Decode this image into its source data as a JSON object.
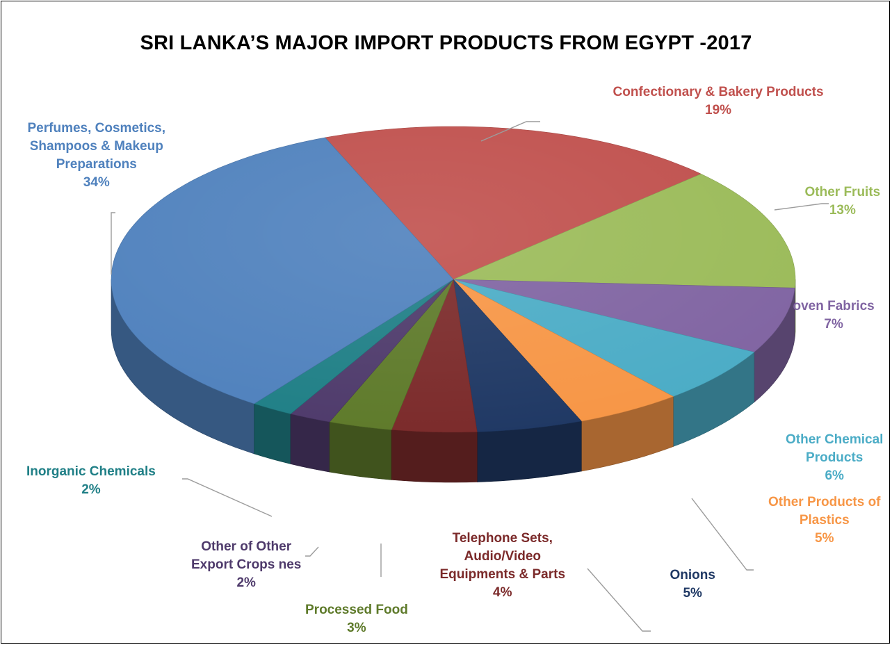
{
  "chart_data": {
    "type": "pie",
    "title": "SRI LANKA’S MAJOR IMPORT PRODUCTS FROM EGYPT -2017",
    "slices": [
      {
        "name": "Confectionary & Bakery Products",
        "value": 19,
        "label": "19%",
        "color": "#C0504D"
      },
      {
        "name": "Other Fruits",
        "value": 13,
        "label": "13%",
        "color": "#9BBB59"
      },
      {
        "name": "oven Fabrics",
        "value": 7,
        "label": "7%",
        "color": "#8064A2"
      },
      {
        "name": "Other Chemical Products",
        "value": 6,
        "label": "6%",
        "color": "#4BACC6"
      },
      {
        "name": "Other Products of Plastics",
        "value": 5,
        "label": "5%",
        "color": "#F79646"
      },
      {
        "name": "Onions",
        "value": 5,
        "label": "5%",
        "color": "#1F3864"
      },
      {
        "name": "Telephone Sets, Audio/Video Equipments & Parts",
        "value": 4,
        "label": "4%",
        "color": "#7B2A2A"
      },
      {
        "name": "Processed Food",
        "value": 3,
        "label": "3%",
        "color": "#5E7A2A"
      },
      {
        "name": "Other of Other Export Crops nes",
        "value": 2,
        "label": "2%",
        "color": "#4E3A6B"
      },
      {
        "name": "Inorganic Chemicals",
        "value": 2,
        "label": "2%",
        "color": "#1F7F86"
      },
      {
        "name": "Perfumes, Cosmetics, Shampoos & Makeup Preparations",
        "value": 34,
        "label": "34%",
        "color": "#4F81BD"
      }
    ],
    "labels": [
      {
        "lines": [
          "Confectionary & Bakery Products"
        ],
        "pct": "19%",
        "color": "#C0504D"
      },
      {
        "lines": [
          "Other Fruits"
        ],
        "pct": "13%",
        "color": "#9BBB59"
      },
      {
        "lines": [
          "oven Fabrics"
        ],
        "pct": "7%",
        "color": "#8064A2"
      },
      {
        "lines": [
          "Other Chemical",
          "Products"
        ],
        "pct": "6%",
        "color": "#4BACC6"
      },
      {
        "lines": [
          "Other Products of",
          "Plastics"
        ],
        "pct": "5%",
        "color": "#F79646"
      },
      {
        "lines": [
          "Onions"
        ],
        "pct": "5%",
        "color": "#1F3864"
      },
      {
        "lines": [
          "Telephone Sets,",
          "Audio/Video",
          "Equipments & Parts"
        ],
        "pct": "4%",
        "color": "#7B2A2A"
      },
      {
        "lines": [
          "Processed Food"
        ],
        "pct": "3%",
        "color": "#5E7A2A"
      },
      {
        "lines": [
          "Other of Other",
          "Export Crops nes"
        ],
        "pct": "2%",
        "color": "#4E3A6B"
      },
      {
        "lines": [
          "Inorganic Chemicals"
        ],
        "pct": "2%",
        "color": "#1F7F86"
      },
      {
        "lines": [
          "Perfumes, Cosmetics,",
          "Shampoos & Makeup",
          "Preparations"
        ],
        "pct": "34%",
        "color": "#4F81BD"
      }
    ],
    "style": "3d",
    "legend": "none"
  }
}
